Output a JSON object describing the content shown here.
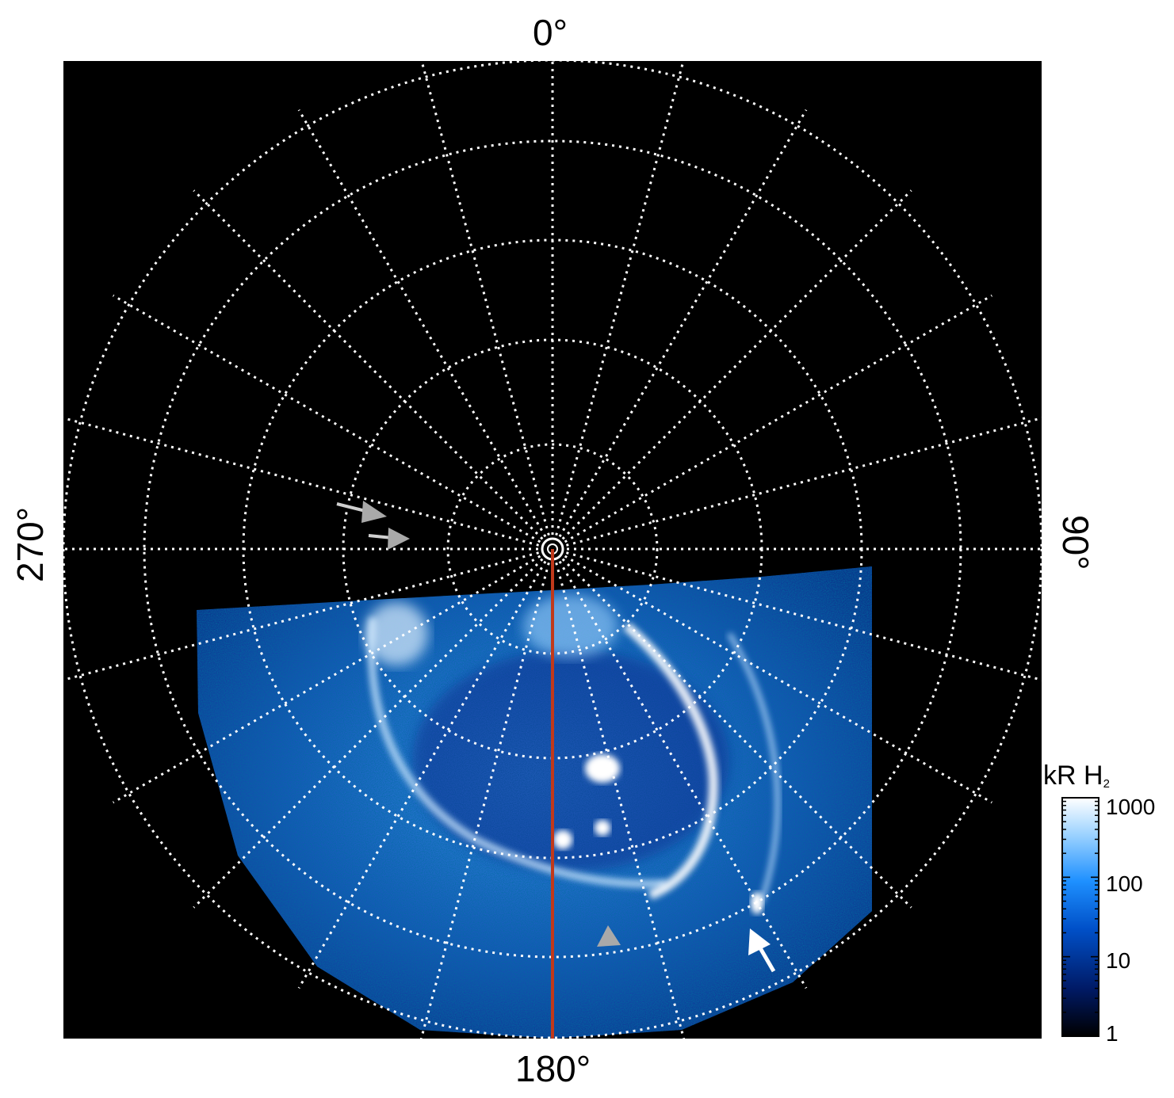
{
  "title": "",
  "polar_labels": {
    "top": "0°",
    "right": "90°",
    "bottom": "180°",
    "left": "270°"
  },
  "colorbar": {
    "title": "kR H",
    "title_subscript": "2",
    "tick_labels": [
      "1000",
      "100",
      "10",
      "1"
    ],
    "scale": "log",
    "range": [
      1,
      1000
    ],
    "colors": [
      "#000000",
      "#001a66",
      "#0050c8",
      "#1e90ff",
      "#9fd4ff",
      "#ffffff"
    ]
  },
  "colors": {
    "background": "#000000",
    "grid": "#ffffff",
    "meridian_line": "#c0391b",
    "aurora": "#2a8cff",
    "arrow_white": "#ffffff",
    "arrow_gray": "#a9a9a9"
  }
}
